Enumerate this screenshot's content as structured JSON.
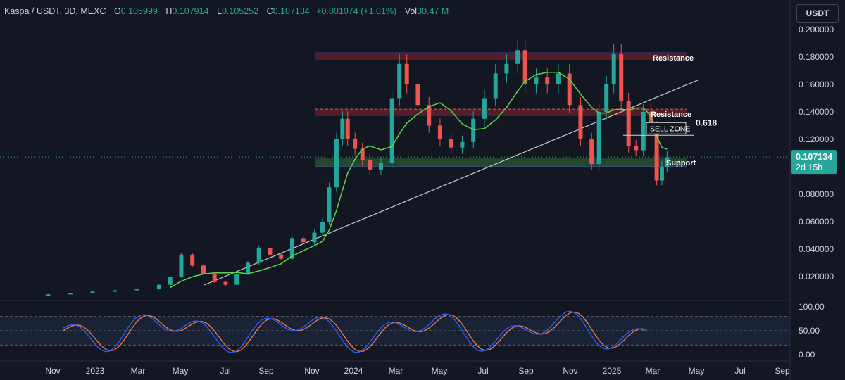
{
  "header": {
    "symbol": "Kaspa / USDT, 3D, MEXC",
    "open_label": "O",
    "open": "0.105999",
    "high_label": "H",
    "high": "0.107914",
    "low_label": "L",
    "low": "0.105252",
    "close_label": "C",
    "close": "0.107134",
    "change": "+0.001074 (+1.01%)",
    "vol_label": "Vol",
    "vol": "30.47 M"
  },
  "currency_button": "USDT",
  "colors": {
    "background": "#131722",
    "up": "#26a69a",
    "down": "#ef5350",
    "ma": "#5bd64a",
    "trendline": "#c9ccd4",
    "stoch_k": "#2962ff",
    "stoch_d": "#f57c51"
  },
  "chart_data": {
    "type": "candlestick",
    "price_axis": {
      "ticks": [
        "0.200000",
        "0.180000",
        "0.160000",
        "0.140000",
        "0.120000",
        "0.100000",
        "0.080000",
        "0.060000",
        "0.040000",
        "0.020000"
      ],
      "range": [
        0.0,
        0.2
      ]
    },
    "time_axis": {
      "ticks": [
        "Nov",
        "2023",
        "Mar",
        "May",
        "Jul",
        "Sep",
        "Nov",
        "2024",
        "Mar",
        "May",
        "Jul",
        "Sep",
        "Nov",
        "2025",
        "Mar",
        "May",
        "Jul",
        "Sep"
      ]
    },
    "last_price": {
      "value": "0.107134",
      "countdown": "2d 15h"
    },
    "candles": [
      [
        "2022-10-20",
        0.006,
        0.007
      ],
      [
        "2022-11-20",
        0.007,
        0.008
      ],
      [
        "2022-12-20",
        0.008,
        0.009
      ],
      [
        "2023-01-20",
        0.009,
        0.01
      ],
      [
        "2023-02-20",
        0.01,
        0.011
      ],
      [
        "2023-03-20",
        0.011,
        0.014
      ],
      [
        "2023-04-05",
        0.014,
        0.02
      ],
      [
        "2023-04-20",
        0.02,
        0.036
      ],
      [
        "2023-05-05",
        0.036,
        0.028
      ],
      [
        "2023-05-20",
        0.028,
        0.022
      ],
      [
        "2023-06-05",
        0.022,
        0.016
      ],
      [
        "2023-06-20",
        0.016,
        0.014
      ],
      [
        "2023-07-05",
        0.014,
        0.022
      ],
      [
        "2023-07-20",
        0.022,
        0.03
      ],
      [
        "2023-08-05",
        0.03,
        0.041
      ],
      [
        "2023-08-20",
        0.041,
        0.036
      ],
      [
        "2023-09-05",
        0.036,
        0.033
      ],
      [
        "2023-09-20",
        0.033,
        0.048
      ],
      [
        "2023-10-05",
        0.048,
        0.045
      ],
      [
        "2023-10-20",
        0.045,
        0.052
      ],
      [
        "2023-11-01",
        0.052,
        0.06
      ],
      [
        "2023-11-10",
        0.06,
        0.085
      ],
      [
        "2023-11-20",
        0.085,
        0.12
      ],
      [
        "2023-11-28",
        0.12,
        0.135
      ],
      [
        "2023-12-05",
        0.135,
        0.12
      ],
      [
        "2023-12-15",
        0.12,
        0.113
      ],
      [
        "2023-12-25",
        0.113,
        0.105
      ],
      [
        "2024-01-05",
        0.105,
        0.098
      ],
      [
        "2024-01-20",
        0.098,
        0.103
      ],
      [
        "2024-02-05",
        0.103,
        0.15
      ],
      [
        "2024-02-15",
        0.15,
        0.175
      ],
      [
        "2024-02-25",
        0.175,
        0.16
      ],
      [
        "2024-03-10",
        0.16,
        0.145
      ],
      [
        "2024-03-25",
        0.145,
        0.13
      ],
      [
        "2024-04-10",
        0.13,
        0.12
      ],
      [
        "2024-04-25",
        0.12,
        0.114
      ],
      [
        "2024-05-10",
        0.114,
        0.118
      ],
      [
        "2024-05-25",
        0.118,
        0.135
      ],
      [
        "2024-06-10",
        0.135,
        0.15
      ],
      [
        "2024-06-25",
        0.15,
        0.168
      ],
      [
        "2024-07-10",
        0.168,
        0.175
      ],
      [
        "2024-07-25",
        0.175,
        0.185
      ],
      [
        "2024-08-05",
        0.185,
        0.16
      ],
      [
        "2024-08-20",
        0.16,
        0.165
      ],
      [
        "2024-09-05",
        0.165,
        0.16
      ],
      [
        "2024-09-20",
        0.16,
        0.168
      ],
      [
        "2024-10-05",
        0.168,
        0.145
      ],
      [
        "2024-10-20",
        0.145,
        0.12
      ],
      [
        "2024-11-05",
        0.12,
        0.102
      ],
      [
        "2024-11-15",
        0.102,
        0.14
      ],
      [
        "2024-11-25",
        0.14,
        0.16
      ],
      [
        "2024-12-05",
        0.16,
        0.182
      ],
      [
        "2024-12-15",
        0.182,
        0.148
      ],
      [
        "2024-12-25",
        0.148,
        0.115
      ],
      [
        "2025-01-05",
        0.115,
        0.112
      ],
      [
        "2025-01-15",
        0.112,
        0.14
      ],
      [
        "2025-01-25",
        0.14,
        0.128
      ],
      [
        "2025-02-03",
        0.128,
        0.09
      ],
      [
        "2025-02-10",
        0.09,
        0.1
      ],
      [
        "2025-02-17",
        0.1,
        0.107
      ]
    ],
    "ma_label": "",
    "annotations": {
      "resistance_top_label": "Resistance",
      "resistance_top_range": [
        0.178,
        0.183
      ],
      "resistance_mid_label": "Resistance",
      "resistance_mid_range": [
        0.137,
        0.142
      ],
      "support_label": "Support",
      "support_range": [
        0.1,
        0.106
      ],
      "sell_zone_label": "SELL ZONE",
      "fib_label": "0.618",
      "fib_level": 0.126
    },
    "oscillator": {
      "ticks": [
        "100.00",
        "50.00",
        "0.00"
      ],
      "range": [
        0,
        100
      ],
      "bands": [
        20,
        80
      ]
    }
  }
}
